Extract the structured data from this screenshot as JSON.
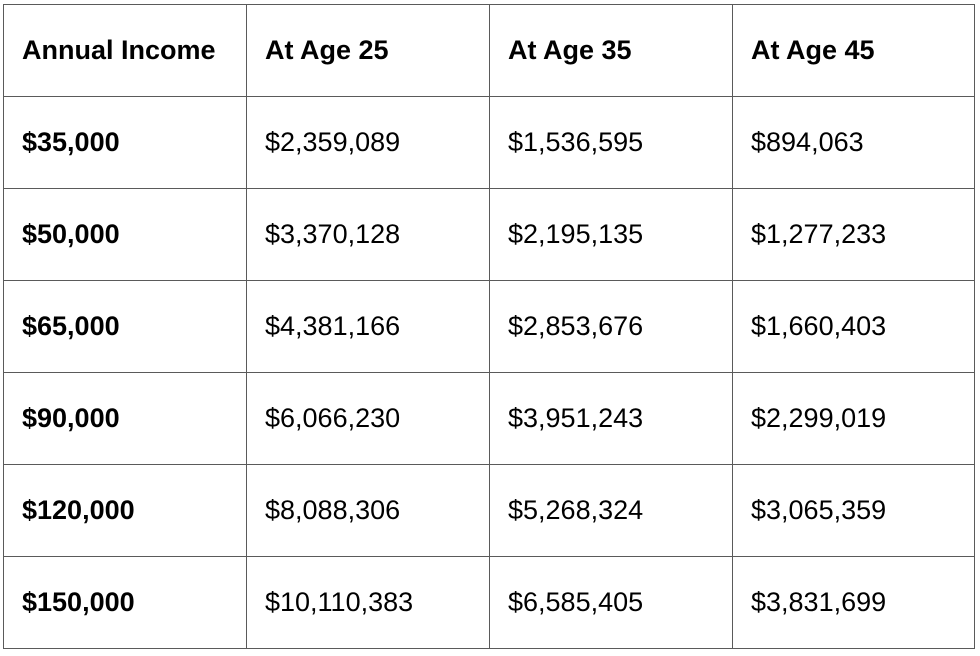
{
  "table": {
    "headers": [
      "Annual Income",
      "At Age 25",
      "At Age 35",
      "At Age 45"
    ],
    "rows": [
      [
        "$35,000",
        "$2,359,089",
        "$1,536,595",
        "$894,063"
      ],
      [
        "$50,000",
        "$3,370,128",
        "$2,195,135",
        "$1,277,233"
      ],
      [
        "$65,000",
        "$4,381,166",
        "$2,853,676",
        "$1,660,403"
      ],
      [
        "$90,000",
        "$6,066,230",
        "$3,951,243",
        "$2,299,019"
      ],
      [
        "$120,000",
        "$8,088,306",
        "$5,268,324",
        "$3,065,359"
      ],
      [
        "$150,000",
        "$10,110,383",
        "$6,585,405",
        "$3,831,699"
      ]
    ]
  },
  "colors": {
    "border": "#5a5a5a",
    "text": "#000000",
    "background": "#ffffff"
  }
}
